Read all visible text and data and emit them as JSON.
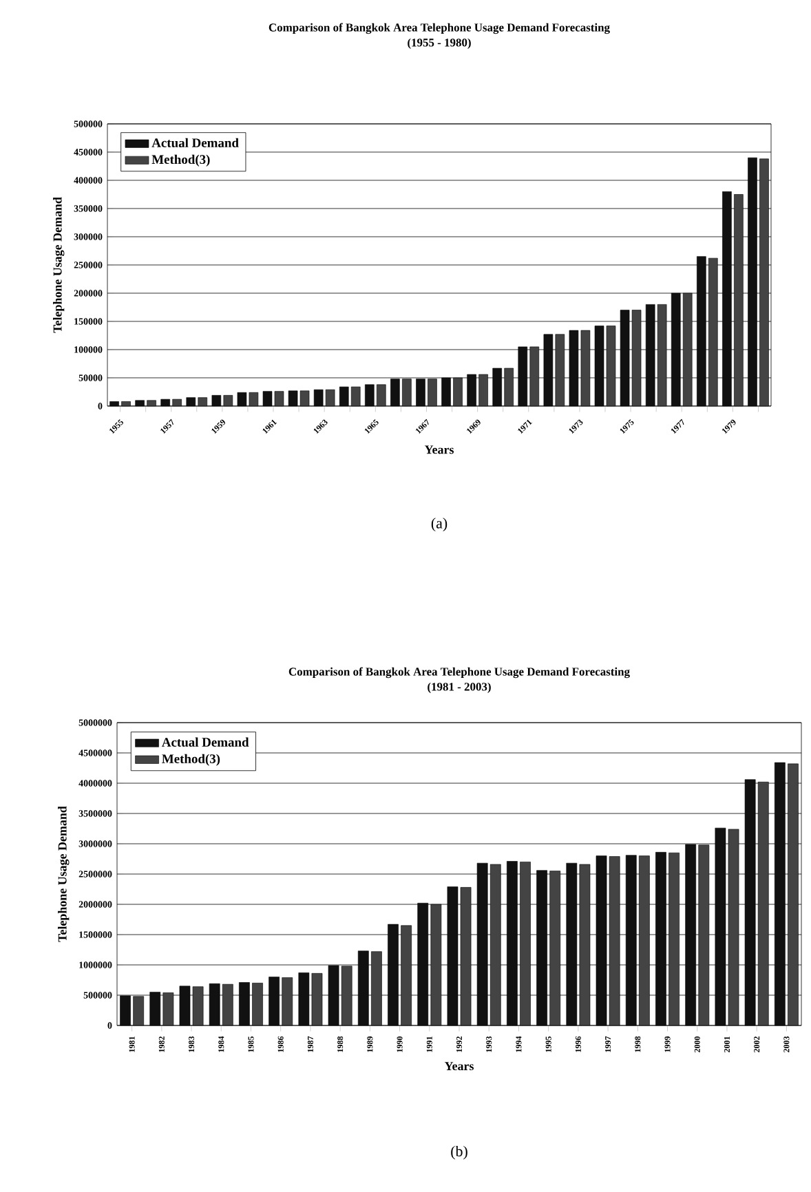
{
  "chart_data": [
    {
      "type": "bar",
      "title": "Comparison of Bangkok Area Telephone Usage Demand Forecasting",
      "subtitle": "(1955 - 1980)",
      "xlabel": "Years",
      "ylabel": "Telephone Usage Demand",
      "annotations": [
        "(a)"
      ],
      "categories": [
        "1955",
        null,
        "1957",
        null,
        "1959",
        null,
        "1961",
        null,
        "1963",
        null,
        "1965",
        null,
        "1967",
        null,
        "1969",
        null,
        "1971",
        null,
        "1973",
        null,
        "1975",
        null,
        "1977",
        null,
        "1979",
        null
      ],
      "series": [
        {
          "name": "Actual Demand",
          "color": "#111111",
          "values": [
            8000,
            10000,
            12000,
            15000,
            19000,
            24000,
            26000,
            27000,
            29000,
            34000,
            38000,
            48000,
            48000,
            50000,
            56000,
            67000,
            105000,
            127000,
            134000,
            142000,
            170000,
            180000,
            200000,
            265000,
            380000,
            440000
          ]
        },
        {
          "name": "Method(3)",
          "color": "#444444",
          "values": [
            8000,
            10000,
            12000,
            15000,
            19000,
            24000,
            26000,
            27000,
            29000,
            34000,
            38000,
            48000,
            48000,
            50000,
            56000,
            67000,
            105000,
            127000,
            134000,
            142000,
            170000,
            180000,
            200000,
            262000,
            375000,
            438000
          ]
        }
      ],
      "ylim": [
        0,
        500000
      ],
      "yticks": [
        0,
        50000,
        100000,
        150000,
        200000,
        250000,
        300000,
        350000,
        400000,
        450000,
        500000
      ],
      "grid": "y",
      "legend": "top left"
    },
    {
      "type": "bar",
      "title": "Comparison of Bangkok Area Telephone Usage Demand Forecasting",
      "subtitle": "(1981 - 2003)",
      "xlabel": "Years",
      "ylabel": "Telephone Usage Demand",
      "annotations": [
        "(b)"
      ],
      "categories": [
        "1981",
        "1982",
        "1983",
        "1984",
        "1985",
        "1986",
        "1987",
        "1988",
        "1989",
        "1990",
        "1991",
        "1992",
        "1993",
        "1994",
        "1995",
        "1996",
        "1997",
        "1998",
        "1999",
        "2000",
        "2001",
        "2002",
        "2003"
      ],
      "series": [
        {
          "name": "Actual Demand",
          "color": "#111111",
          "values": [
            490000,
            550000,
            650000,
            690000,
            710000,
            800000,
            870000,
            990000,
            1230000,
            1670000,
            2020000,
            2290000,
            2680000,
            2710000,
            2560000,
            2680000,
            2800000,
            2810000,
            2860000,
            2990000,
            3260000,
            4060000,
            4340000
          ]
        },
        {
          "name": "Method(3)",
          "color": "#444444",
          "values": [
            480000,
            540000,
            640000,
            680000,
            700000,
            790000,
            860000,
            980000,
            1220000,
            1650000,
            2000000,
            2280000,
            2660000,
            2700000,
            2550000,
            2660000,
            2790000,
            2800000,
            2850000,
            2980000,
            3240000,
            4020000,
            4320000
          ]
        }
      ],
      "ylim": [
        0,
        5000000
      ],
      "yticks": [
        0,
        500000,
        1000000,
        1500000,
        2000000,
        2500000,
        3000000,
        3500000,
        4000000,
        4500000,
        5000000
      ],
      "grid": "y",
      "legend": "top left"
    }
  ]
}
